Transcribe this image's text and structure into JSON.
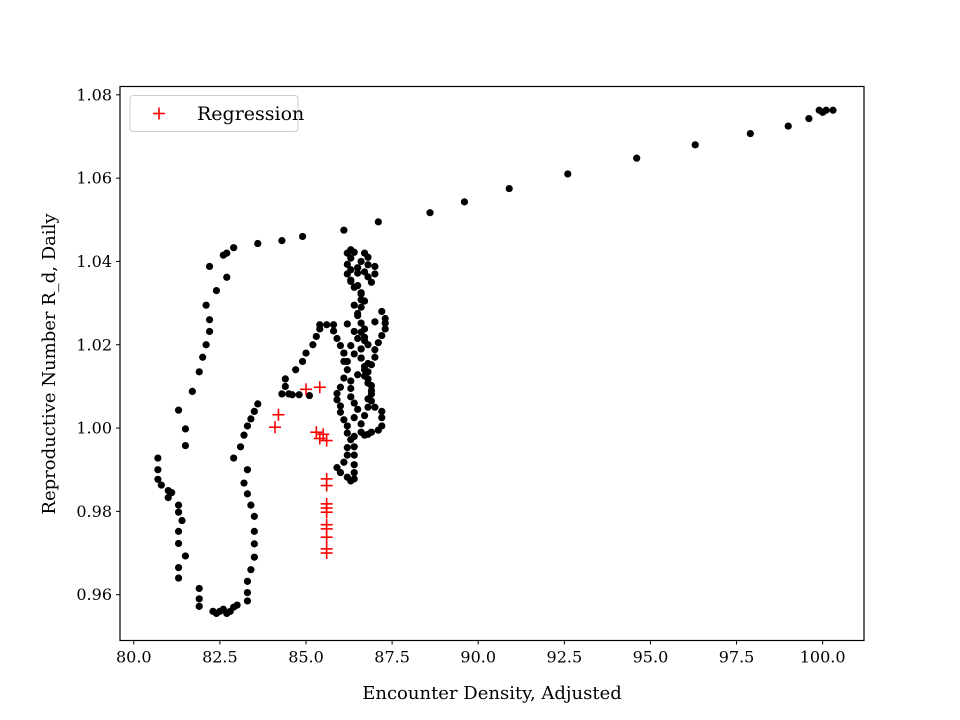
{
  "chart_data": {
    "type": "scatter",
    "title": "",
    "xlabel": "Encounter Density, Adjusted",
    "ylabel": "Reproductive Number R_d, Daily",
    "xlim": [
      79.6,
      101.2
    ],
    "ylim": [
      0.949,
      1.082
    ],
    "x_ticks": [
      80.0,
      82.5,
      85.0,
      87.5,
      90.0,
      92.5,
      95.0,
      97.5,
      100.0
    ],
    "x_tick_labels": [
      "80.0",
      "82.5",
      "85.0",
      "87.5",
      "90.0",
      "92.5",
      "95.0",
      "97.5",
      "100.0"
    ],
    "y_ticks": [
      0.96,
      0.98,
      1.0,
      1.02,
      1.04,
      1.06,
      1.08
    ],
    "y_tick_labels": [
      "0.96",
      "0.98",
      "1.00",
      "1.02",
      "1.04",
      "1.06",
      "1.08"
    ],
    "grid": false,
    "legend_position": "top-left",
    "legend": [
      {
        "label": "Regression",
        "marker": "+",
        "color": "#ff0000"
      }
    ],
    "series": [
      {
        "marker": "circle",
        "color": "#000000",
        "points": [
          [
            100.3,
            1.0763
          ],
          [
            100.1,
            1.0763
          ],
          [
            100.0,
            1.0758
          ],
          [
            99.9,
            1.0763
          ],
          [
            99.6,
            1.0743
          ],
          [
            99.0,
            1.0725
          ],
          [
            97.9,
            1.0707
          ],
          [
            96.3,
            1.068
          ],
          [
            94.6,
            1.0648
          ],
          [
            92.6,
            1.061
          ],
          [
            90.9,
            1.0575
          ],
          [
            89.6,
            1.0543
          ],
          [
            88.6,
            1.0517
          ],
          [
            87.1,
            1.0495
          ],
          [
            86.1,
            1.0475
          ],
          [
            84.9,
            1.046
          ],
          [
            84.3,
            1.045
          ],
          [
            83.6,
            1.0443
          ],
          [
            82.9,
            1.0433
          ],
          [
            82.7,
            1.042
          ],
          [
            82.6,
            1.0415
          ],
          [
            82.2,
            1.0388
          ],
          [
            82.7,
            1.0362
          ],
          [
            82.4,
            1.033
          ],
          [
            82.1,
            1.0295
          ],
          [
            82.2,
            1.026
          ],
          [
            82.2,
            1.0232
          ],
          [
            82.1,
            1.02
          ],
          [
            82.0,
            1.017
          ],
          [
            81.9,
            1.0135
          ],
          [
            81.7,
            1.0088
          ],
          [
            81.3,
            1.0043
          ],
          [
            81.5,
            0.9998
          ],
          [
            81.5,
            0.9958
          ],
          [
            80.7,
            0.9928
          ],
          [
            80.7,
            0.99
          ],
          [
            80.7,
            0.9877
          ],
          [
            80.8,
            0.9863
          ],
          [
            81.0,
            0.985
          ],
          [
            81.1,
            0.9845
          ],
          [
            81.0,
            0.9833
          ],
          [
            81.3,
            0.9815
          ],
          [
            81.3,
            0.9798
          ],
          [
            81.4,
            0.9778
          ],
          [
            81.3,
            0.9752
          ],
          [
            81.3,
            0.9723
          ],
          [
            81.5,
            0.9693
          ],
          [
            81.3,
            0.9665
          ],
          [
            81.3,
            0.964
          ],
          [
            81.9,
            0.9615
          ],
          [
            81.9,
            0.959
          ],
          [
            81.9,
            0.9572
          ],
          [
            82.3,
            0.956
          ],
          [
            82.4,
            0.9555
          ],
          [
            82.5,
            0.956
          ],
          [
            82.6,
            0.9565
          ],
          [
            82.7,
            0.9555
          ],
          [
            82.8,
            0.956
          ],
          [
            82.9,
            0.957
          ],
          [
            83.0,
            0.9575
          ],
          [
            83.3,
            0.9585
          ],
          [
            83.3,
            0.9605
          ],
          [
            83.3,
            0.9632
          ],
          [
            83.4,
            0.966
          ],
          [
            83.5,
            0.969
          ],
          [
            83.5,
            0.9722
          ],
          [
            83.5,
            0.9752
          ],
          [
            83.5,
            0.9788
          ],
          [
            83.4,
            0.9815
          ],
          [
            83.3,
            0.9842
          ],
          [
            83.2,
            0.9868
          ],
          [
            83.3,
            0.99
          ],
          [
            82.9,
            0.9928
          ],
          [
            83.1,
            0.9955
          ],
          [
            83.2,
            0.9983
          ],
          [
            83.3,
            1.0005
          ],
          [
            83.4,
            1.0022
          ],
          [
            83.5,
            1.004
          ],
          [
            83.6,
            1.0058
          ],
          [
            84.3,
            1.0082
          ],
          [
            84.5,
            1.0082
          ],
          [
            84.6,
            1.008
          ],
          [
            84.8,
            1.008
          ],
          [
            85.1,
            1.0078
          ],
          [
            84.4,
            1.01
          ],
          [
            84.4,
            1.0118
          ],
          [
            84.7,
            1.014
          ],
          [
            84.9,
            1.016
          ],
          [
            85.0,
            1.018
          ],
          [
            85.2,
            1.02
          ],
          [
            85.3,
            1.022
          ],
          [
            85.4,
            1.0238
          ],
          [
            85.4,
            1.0248
          ],
          [
            85.6,
            1.0248
          ],
          [
            85.8,
            1.0248
          ],
          [
            85.8,
            1.0233
          ],
          [
            85.9,
            1.0215
          ],
          [
            86.0,
            1.0198
          ],
          [
            86.1,
            1.018
          ],
          [
            86.1,
            1.016
          ],
          [
            86.2,
            1.014
          ],
          [
            86.1,
            1.012
          ],
          [
            86.0,
            1.0098
          ],
          [
            85.9,
            1.0083
          ],
          [
            85.9,
            1.0068
          ],
          [
            86.0,
            1.0053
          ],
          [
            86.0,
            1.0038
          ],
          [
            86.1,
            1.002
          ],
          [
            86.2,
            1.0005
          ],
          [
            86.2,
            0.9988
          ],
          [
            86.3,
            0.9972
          ],
          [
            86.2,
            0.9953
          ],
          [
            86.2,
            0.9935
          ],
          [
            86.1,
            0.9918
          ],
          [
            85.9,
            0.9905
          ],
          [
            86.0,
            0.9893
          ],
          [
            86.2,
            0.9882
          ],
          [
            86.3,
            0.9873
          ],
          [
            86.4,
            0.9878
          ],
          [
            86.4,
            0.9893
          ],
          [
            86.4,
            0.9912
          ],
          [
            86.4,
            0.9935
          ],
          [
            86.4,
            0.9955
          ],
          [
            86.4,
            0.998
          ],
          [
            86.6,
            0.999
          ],
          [
            86.7,
            0.9983
          ],
          [
            86.8,
            0.9985
          ],
          [
            86.9,
            0.999
          ],
          [
            87.1,
            0.9995
          ],
          [
            87.2,
            1.0005
          ],
          [
            87.2,
            1.0025
          ],
          [
            87.2,
            1.004
          ],
          [
            87.0,
            1.005
          ],
          [
            86.9,
            1.0065
          ],
          [
            86.9,
            1.0082
          ],
          [
            86.9,
            1.0102
          ],
          [
            86.8,
            1.0118
          ],
          [
            86.8,
            1.0135
          ],
          [
            86.9,
            1.0152
          ],
          [
            87.0,
            1.017
          ],
          [
            87.0,
            1.0188
          ],
          [
            87.1,
            1.0205
          ],
          [
            87.2,
            1.0222
          ],
          [
            87.3,
            1.0238
          ],
          [
            87.3,
            1.0252
          ],
          [
            87.3,
            1.0263
          ],
          [
            87.2,
            1.028
          ],
          [
            87.0,
            1.0255
          ],
          [
            86.7,
            1.0238
          ],
          [
            86.7,
            1.0218
          ],
          [
            86.8,
            1.02
          ],
          [
            86.6,
            1.019
          ],
          [
            86.4,
            1.0178
          ],
          [
            86.6,
            1.0168
          ],
          [
            86.8,
            1.0155
          ],
          [
            86.7,
            1.014
          ],
          [
            86.5,
            1.0128
          ],
          [
            86.3,
            1.0113
          ],
          [
            86.3,
            1.0095
          ],
          [
            86.3,
            1.0075
          ],
          [
            86.4,
            1.006
          ],
          [
            86.5,
            1.0045
          ],
          [
            86.4,
            1.0025
          ],
          [
            86.6,
            1.001
          ],
          [
            86.7,
            1.003
          ],
          [
            86.8,
            1.005
          ],
          [
            86.8,
            1.007
          ],
          [
            86.9,
            1.009
          ],
          [
            86.8,
            1.0108
          ],
          [
            86.7,
            1.0125
          ],
          [
            86.7,
            1.0148
          ],
          [
            86.6,
            1.0168
          ],
          [
            86.6,
            1.019
          ],
          [
            86.7,
            1.021
          ],
          [
            86.6,
            1.023
          ],
          [
            86.6,
            1.0252
          ],
          [
            86.5,
            1.0275
          ],
          [
            86.4,
            1.0295
          ],
          [
            86.6,
            1.0308
          ],
          [
            86.6,
            1.0325
          ],
          [
            86.5,
            1.0342
          ],
          [
            86.3,
            1.0355
          ],
          [
            86.2,
            1.037
          ],
          [
            86.3,
            1.038
          ],
          [
            86.2,
            1.0393
          ],
          [
            86.3,
            1.0408
          ],
          [
            86.2,
            1.042
          ],
          [
            86.3,
            1.0428
          ],
          [
            86.4,
            1.0422
          ],
          [
            86.7,
            1.042
          ],
          [
            86.8,
            1.041
          ],
          [
            86.6,
            1.04
          ],
          [
            86.5,
            1.0385
          ],
          [
            86.7,
            1.0375
          ],
          [
            86.8,
            1.0363
          ],
          [
            86.9,
            1.035
          ],
          [
            87.0,
            1.037
          ],
          [
            87.0,
            1.0388
          ],
          [
            86.8,
            1.0392
          ],
          [
            86.5,
            1.0372
          ],
          [
            86.3,
            1.0352
          ],
          [
            86.4,
            1.0338
          ],
          [
            86.6,
            1.0322
          ],
          [
            86.7,
            1.0305
          ],
          [
            86.6,
            1.029
          ],
          [
            86.5,
            1.027
          ],
          [
            86.2,
            1.025
          ],
          [
            86.4,
            1.0232
          ],
          [
            86.5,
            1.0215
          ],
          [
            86.3,
            1.0198
          ],
          [
            86.1,
            1.018
          ],
          [
            86.2,
            1.016
          ]
        ]
      },
      {
        "name": "Regression",
        "marker": "+",
        "color": "#ff0000",
        "points": [
          [
            84.2,
            1.0032
          ],
          [
            84.1,
            1.0002
          ],
          [
            85.0,
            1.0093
          ],
          [
            85.4,
            1.0098
          ],
          [
            85.3,
            0.999
          ],
          [
            85.4,
            0.9975
          ],
          [
            85.5,
            0.9985
          ],
          [
            85.6,
            0.997
          ],
          [
            85.6,
            0.9878
          ],
          [
            85.6,
            0.9862
          ],
          [
            85.6,
            0.9818
          ],
          [
            85.6,
            0.9808
          ],
          [
            85.6,
            0.9798
          ],
          [
            85.6,
            0.9768
          ],
          [
            85.6,
            0.9758
          ],
          [
            85.6,
            0.9738
          ],
          [
            85.6,
            0.971
          ],
          [
            85.6,
            0.97
          ]
        ]
      }
    ]
  }
}
